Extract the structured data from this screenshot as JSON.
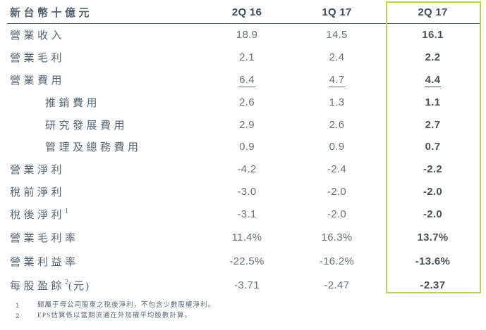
{
  "table": {
    "unit_label": "新台幣十億元",
    "columns": [
      "2Q 16",
      "1Q 17",
      "2Q 17"
    ],
    "highlighted_column": "2Q 17",
    "rows": [
      {
        "label": "營業收入",
        "sup": "",
        "suffix": "",
        "indent": false,
        "underline": false,
        "tall": false,
        "values": [
          "18.9",
          "14.5",
          "16.1"
        ]
      },
      {
        "label": "營業毛利",
        "sup": "",
        "suffix": "",
        "indent": false,
        "underline": false,
        "tall": false,
        "values": [
          "2.1",
          "2.4",
          "2.2"
        ]
      },
      {
        "label": "營業費用",
        "sup": "",
        "suffix": "",
        "indent": false,
        "underline": true,
        "tall": false,
        "values": [
          "6.4",
          "4.7",
          "4.4"
        ]
      },
      {
        "label": "推銷費用",
        "sup": "",
        "suffix": "",
        "indent": true,
        "underline": false,
        "tall": false,
        "values": [
          "2.6",
          "1.3",
          "1.1"
        ]
      },
      {
        "label": "研究發展費用",
        "sup": "",
        "suffix": "",
        "indent": true,
        "underline": false,
        "tall": false,
        "values": [
          "2.9",
          "2.6",
          "2.7"
        ]
      },
      {
        "label": "管理及總務費用",
        "sup": "",
        "suffix": "",
        "indent": true,
        "underline": false,
        "tall": false,
        "values": [
          "0.9",
          "0.9",
          "0.7"
        ]
      },
      {
        "label": "營業淨利",
        "sup": "",
        "suffix": "",
        "indent": false,
        "underline": false,
        "tall": false,
        "values": [
          "-4.2",
          "-2.4",
          "-2.2"
        ]
      },
      {
        "label": "稅前淨利",
        "sup": "",
        "suffix": "",
        "indent": false,
        "underline": false,
        "tall": false,
        "values": [
          "-3.0",
          "-2.0",
          "-2.0"
        ]
      },
      {
        "label": "稅後淨利",
        "sup": "1",
        "suffix": "",
        "indent": false,
        "underline": false,
        "tall": false,
        "values": [
          "-3.1",
          "-2.0",
          "-2.0"
        ]
      },
      {
        "label": "營業毛利率",
        "sup": "",
        "suffix": "",
        "indent": false,
        "underline": false,
        "tall": true,
        "values": [
          "11.4%",
          "16.3%",
          "13.7%"
        ]
      },
      {
        "label": "營業利益率",
        "sup": "",
        "suffix": "",
        "indent": false,
        "underline": false,
        "tall": true,
        "values": [
          "-22.5%",
          "-16.2%",
          "-13.6%"
        ]
      },
      {
        "label": "每股盈餘",
        "sup": "2",
        "suffix": "(元)",
        "indent": false,
        "underline": false,
        "tall": true,
        "values": [
          "-3.71",
          "-2.47",
          "-2.37"
        ]
      }
    ]
  },
  "footnotes": [
    {
      "marker": "1",
      "text": "歸屬于母公司股東之稅後淨利，不包含少數股權淨利。"
    },
    {
      "marker": "2",
      "text": "EPS估算係以當期流通在外加權平均股數計算。"
    }
  ],
  "colors": {
    "highlight_border": "#b9d163",
    "header_rule": "#47525c",
    "label_text": "#55616d",
    "number_text": "#686e74",
    "bold_number_text": "#4a4f54"
  }
}
